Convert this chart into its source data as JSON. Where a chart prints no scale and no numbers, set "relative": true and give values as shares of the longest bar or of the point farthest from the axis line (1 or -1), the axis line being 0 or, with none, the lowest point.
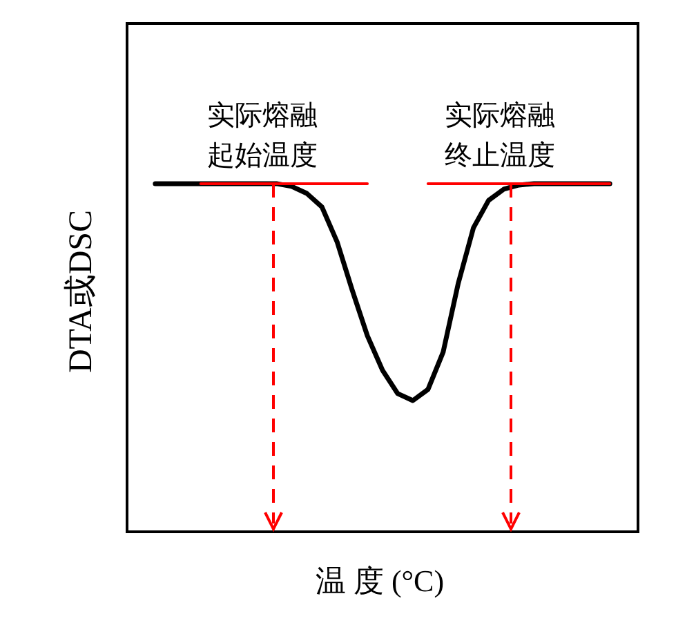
{
  "chart_data": {
    "type": "line",
    "relative": true,
    "xlabel": "温 度 (°C)",
    "ylabel": "DTA或DSC",
    "grid": false,
    "marker": "none",
    "annotations": [
      "实际熔融起始温度",
      "实际熔融终止温度"
    ],
    "categories": [
      null,
      null,
      null,
      null,
      null,
      null,
      null,
      null,
      null,
      null,
      null,
      null,
      null,
      null,
      null,
      null,
      null,
      null,
      null,
      null,
      null,
      null,
      null,
      null,
      null,
      null,
      null,
      null,
      null,
      null,
      null
    ],
    "series": [
      {
        "color": "#000000",
        "values": [
          1,
          1,
          1,
          1,
          1,
          1,
          1,
          1,
          1,
          0.992,
          0.972,
          0.933,
          0.833,
          0.694,
          0.563,
          0.464,
          0.397,
          0.377,
          0.409,
          0.516,
          0.714,
          0.873,
          0.952,
          0.984,
          0.996,
          1,
          1,
          1,
          1,
          1,
          1
        ]
      },
      {
        "color": "#ff0000",
        "values": [
          null,
          null,
          null,
          1,
          1,
          1,
          1,
          1,
          1,
          1,
          1,
          1,
          1,
          1,
          1,
          null,
          null,
          null,
          null,
          null,
          null,
          null,
          null,
          null,
          null,
          null,
          null,
          null,
          null,
          null,
          null
        ]
      },
      {
        "color": "#ff0000",
        "values": [
          null,
          null,
          null,
          null,
          null,
          null,
          null,
          null,
          null,
          null,
          null,
          null,
          null,
          null,
          null,
          null,
          null,
          null,
          1,
          1,
          1,
          1,
          1,
          1,
          1,
          1,
          1,
          1,
          1,
          1,
          1
        ]
      }
    ]
  }
}
